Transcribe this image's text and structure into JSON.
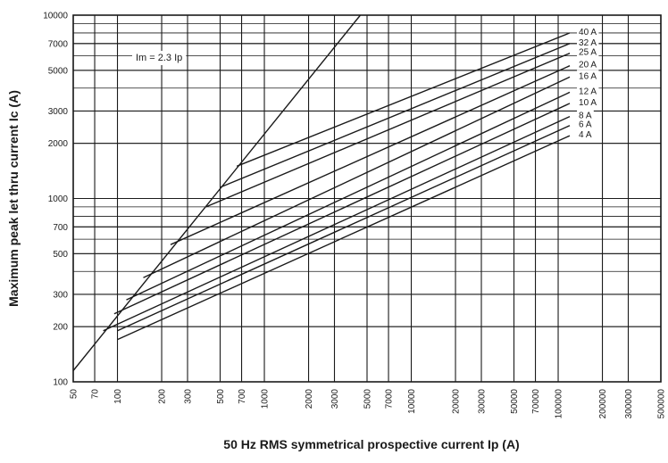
{
  "chart_data": {
    "type": "line",
    "xlabel": "50 Hz RMS symmetrical prospective current Ip (A)",
    "ylabel": "Maximum peak let thru current Ic (A)",
    "x_scale": "log",
    "y_scale": "log",
    "xlim": [
      50,
      500000
    ],
    "ylim": [
      100,
      10000
    ],
    "grid": true,
    "x_ticks": [
      "50",
      "70",
      "100",
      "200",
      "300",
      "500",
      "700",
      "1000",
      "2000",
      "3000",
      "5000",
      "7000",
      "10000",
      "20000",
      "30000",
      "50000",
      "70000",
      "100000",
      "200000",
      "300000",
      "500000"
    ],
    "y_ticks": [
      "100",
      "200",
      "300",
      "500",
      "700",
      "1000",
      "2000",
      "3000",
      "5000",
      "7000",
      "10000"
    ],
    "annotation": "Im = 2.3 Ip",
    "series": [
      {
        "name": "Im = 2.3 Ip",
        "x": [
          50,
          4500
        ],
        "y": [
          115,
          10000
        ]
      },
      {
        "name": "40 A",
        "x": [
          650,
          120000
        ],
        "y": [
          1500,
          8000
        ]
      },
      {
        "name": "32 A",
        "x": [
          500,
          120000
        ],
        "y": [
          1150,
          7000
        ]
      },
      {
        "name": "25 A",
        "x": [
          400,
          120000
        ],
        "y": [
          900,
          6200
        ]
      },
      {
        "name": "20 A",
        "x": [
          230,
          120000
        ],
        "y": [
          560,
          5300
        ]
      },
      {
        "name": "16 A",
        "x": [
          150,
          120000
        ],
        "y": [
          370,
          4600
        ]
      },
      {
        "name": "12 A",
        "x": [
          115,
          120000
        ],
        "y": [
          280,
          3800
        ]
      },
      {
        "name": "10 A",
        "x": [
          95,
          120000
        ],
        "y": [
          235,
          3300
        ]
      },
      {
        "name": "8 A",
        "x": [
          80,
          120000
        ],
        "y": [
          190,
          2800
        ]
      },
      {
        "name": "6 A",
        "x": [
          100,
          120000
        ],
        "y": [
          190,
          2500
        ]
      },
      {
        "name": "4 A",
        "x": [
          100,
          120000
        ],
        "y": [
          170,
          2200
        ]
      }
    ]
  }
}
